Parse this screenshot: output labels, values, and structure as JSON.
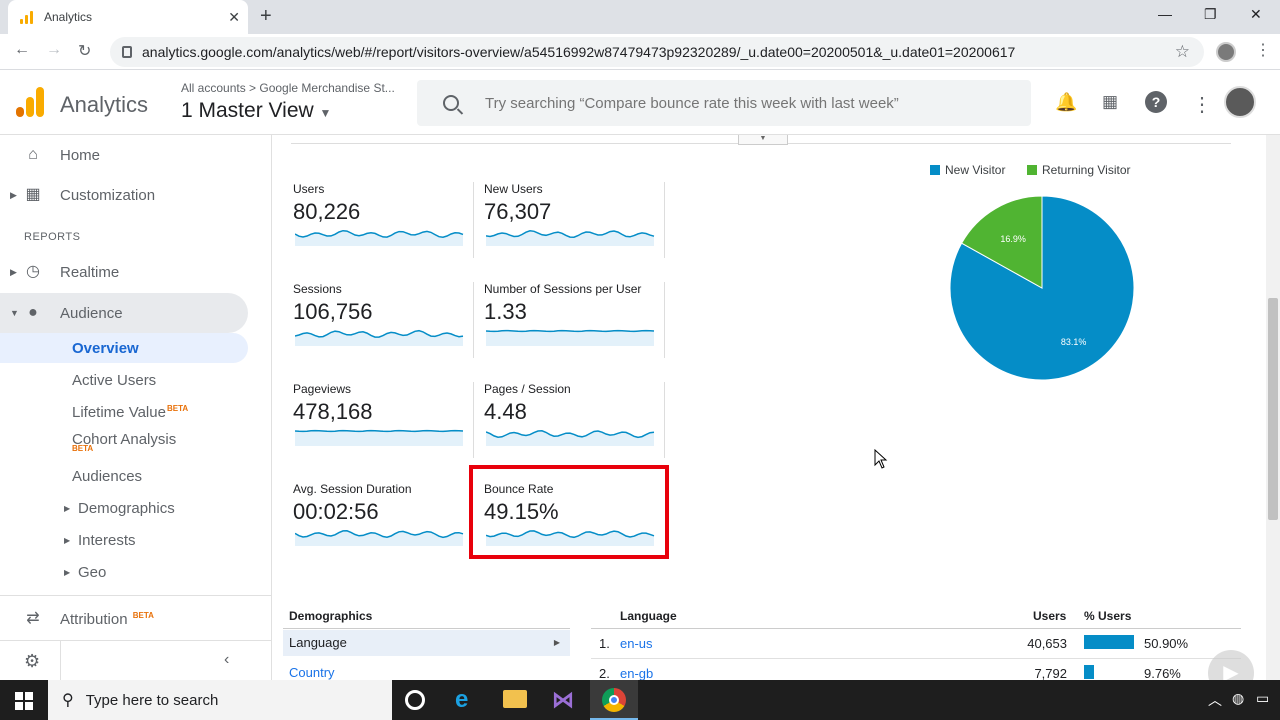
{
  "browser": {
    "tab_title": "Analytics",
    "url": "analytics.google.com/analytics/web/#/report/visitors-overview/a54516992w87479473p92320289/_u.date00=20200501&_u.date01=20200617"
  },
  "header": {
    "app_title": "Analytics",
    "breadcrumb": "All accounts > Google Merchandise St...",
    "view_name": "1 Master View",
    "search_placeholder": "Try searching “Compare bounce rate this week with last week”"
  },
  "sidebar": {
    "home": "Home",
    "customization": "Customization",
    "reports_section": "REPORTS",
    "realtime": "Realtime",
    "audience": "Audience",
    "sub": {
      "overview": "Overview",
      "active_users": "Active Users",
      "lifetime_value": "Lifetime Value",
      "cohort_analysis": "Cohort Analysis",
      "audiences": "Audiences",
      "demographics": "Demographics",
      "interests": "Interests",
      "geo": "Geo"
    },
    "beta_label": "BETA",
    "attribution": "Attribution"
  },
  "metrics": [
    {
      "label": "Users",
      "value": "80,226"
    },
    {
      "label": "New Users",
      "value": "76,307"
    },
    {
      "label": "Sessions",
      "value": "106,756"
    },
    {
      "label": "Number of Sessions per User",
      "value": "1.33"
    },
    {
      "label": "Pageviews",
      "value": "478,168"
    },
    {
      "label": "Pages / Session",
      "value": "4.48"
    },
    {
      "label": "Avg. Session Duration",
      "value": "00:02:56"
    },
    {
      "label": "Bounce Rate",
      "value": "49.15%"
    }
  ],
  "chart_data": {
    "type": "pie",
    "categories": [
      "New Visitor",
      "Returning Visitor"
    ],
    "values": [
      83.1,
      16.9
    ],
    "labels": [
      "83.1%",
      "16.9%"
    ],
    "colors": [
      "#058dc7",
      "#50b432"
    ],
    "legend": "top"
  },
  "demographics": {
    "title": "Demographics",
    "items": [
      "Language",
      "Country"
    ]
  },
  "language_table": {
    "headers": [
      "Language",
      "Users",
      "% Users"
    ],
    "rows": [
      {
        "rank": "1.",
        "name": "en-us",
        "users": "40,653",
        "pct": "50.90%",
        "fraction": 0.509
      },
      {
        "rank": "2.",
        "name": "en-gb",
        "users": "7,792",
        "pct": "9.76%",
        "fraction": 0.0976
      }
    ]
  },
  "taskbar": {
    "search_placeholder": "Type here to search"
  }
}
